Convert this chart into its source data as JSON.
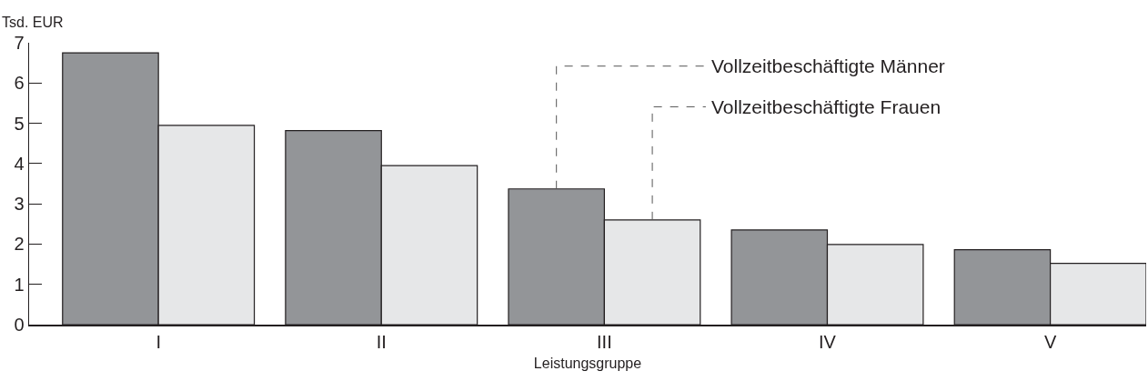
{
  "chart_data": {
    "type": "bar",
    "xlabel": "Leistungsgruppe",
    "ylabel": "Tsd. EUR",
    "categories": [
      "I",
      "II",
      "III",
      "IV",
      "V"
    ],
    "series": [
      {
        "name": "Vollzeitbeschäftigte Männer",
        "color": "#939598",
        "values": [
          6.75,
          4.82,
          3.37,
          2.35,
          1.86
        ]
      },
      {
        "name": "Vollzeitbeschäftigte Frauen",
        "color": "#e6e7e8",
        "values": [
          4.95,
          3.95,
          2.6,
          1.99,
          1.52
        ]
      }
    ],
    "ylim": [
      0,
      7
    ],
    "yticks": [
      0,
      1,
      2,
      3,
      4,
      5,
      6,
      7
    ],
    "grid": false,
    "legend": false
  }
}
